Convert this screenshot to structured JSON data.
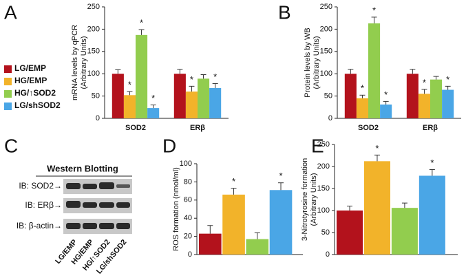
{
  "chart_data": [
    {
      "type": "bar",
      "panel_label": "A",
      "ylabel": [
        "mRNA levels by qPCR",
        "(Arbitrary Units)"
      ],
      "categories": [
        "SOD2",
        "ERβ"
      ],
      "series": [
        {
          "name": "LG/EMP",
          "color": "#b3121c",
          "values": [
            100,
            100
          ],
          "errors": [
            9,
            10
          ],
          "annotations": [
            null,
            null
          ]
        },
        {
          "name": "HG/EMP",
          "color": "#f2b32a",
          "values": [
            52,
            60
          ],
          "errors": [
            8,
            12
          ],
          "annotations": [
            "*",
            "*"
          ]
        },
        {
          "name": "HG/↑SOD2",
          "color": "#92cd4e",
          "values": [
            187,
            89
          ],
          "errors": [
            12,
            9
          ],
          "annotations": [
            "*",
            null
          ]
        },
        {
          "name": "LG/shSOD2",
          "color": "#4aa6e6",
          "values": [
            23,
            68
          ],
          "errors": [
            7,
            10
          ],
          "annotations": [
            "*",
            "*"
          ]
        }
      ],
      "ylim": [
        0,
        250
      ],
      "yticks": [
        0,
        50,
        100,
        150,
        200,
        250
      ]
    },
    {
      "type": "bar",
      "panel_label": "B",
      "ylabel": [
        "Protein levels by WB",
        "(Arbitrary Units)"
      ],
      "categories": [
        "SOD2",
        "ERβ"
      ],
      "series": [
        {
          "name": "LG/EMP",
          "color": "#b3121c",
          "values": [
            100,
            100
          ],
          "errors": [
            10,
            10
          ],
          "annotations": [
            null,
            null
          ]
        },
        {
          "name": "HG/EMP",
          "color": "#f2b32a",
          "values": [
            45,
            55
          ],
          "errors": [
            7,
            10
          ],
          "annotations": [
            "*",
            "*"
          ]
        },
        {
          "name": "HG/↑SOD2",
          "color": "#92cd4e",
          "values": [
            213,
            87
          ],
          "errors": [
            14,
            7
          ],
          "annotations": [
            "*",
            null
          ]
        },
        {
          "name": "LG/shSOD2",
          "color": "#4aa6e6",
          "values": [
            31,
            64
          ],
          "errors": [
            7,
            8
          ],
          "annotations": [
            "*",
            "*"
          ]
        }
      ],
      "ylim": [
        0,
        250
      ],
      "yticks": [
        0,
        50,
        100,
        150,
        200,
        250
      ]
    },
    {
      "type": "bar",
      "panel_label": "D",
      "ylabel": [
        "ROS formation (nmol/ml)"
      ],
      "values": [
        23,
        66,
        17,
        71
      ],
      "errors": [
        9,
        7,
        7,
        8
      ],
      "annotations": [
        null,
        "*",
        null,
        "*"
      ],
      "colors": [
        "#b3121c",
        "#f2b32a",
        "#92cd4e",
        "#4aa6e6"
      ],
      "ylim": [
        0,
        100
      ],
      "yticks": [
        0,
        20,
        40,
        60,
        80,
        100
      ]
    },
    {
      "type": "bar",
      "panel_label": "E",
      "ylabel": [
        "3-Nitrotyrosine formation",
        "(Arbitrary Units)"
      ],
      "values": [
        100,
        212,
        106,
        179
      ],
      "errors": [
        10,
        14,
        11,
        14
      ],
      "annotations": [
        null,
        "*",
        null,
        "*"
      ],
      "colors": [
        "#b3121c",
        "#f2b32a",
        "#92cd4e",
        "#4aa6e6"
      ],
      "ylim": [
        0,
        250
      ],
      "yticks": [
        0,
        50,
        100,
        150,
        200,
        250
      ]
    }
  ],
  "blot": {
    "panel_label": "C",
    "title": "Western Blotting",
    "rows": [
      "IB: SOD2→",
      "IB: ERβ→",
      "IB: β-actin→"
    ],
    "lanes": [
      "LG/EMP",
      "HG/EMP",
      "HG/↑SOD2",
      "LG/shSOD2"
    ]
  }
}
